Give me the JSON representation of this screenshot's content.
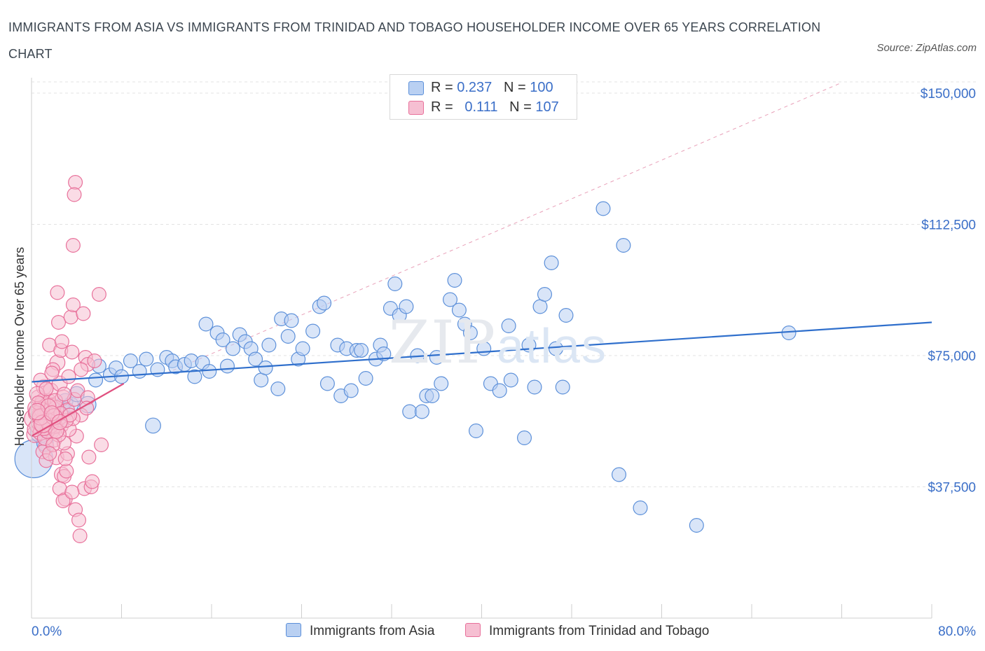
{
  "title": "IMMIGRANTS FROM ASIA VS IMMIGRANTS FROM TRINIDAD AND TOBAGO HOUSEHOLDER INCOME OVER 65 YEARS CORRELATION CHART",
  "source": "Source: ZipAtlas.com",
  "watermark": {
    "zip": "ZIP",
    "atlas": "atlas"
  },
  "colors": {
    "asia": "#5b8fd9",
    "asia_fill": "#b9d0f2",
    "tt": "#e8709a",
    "tt_fill": "#f6bfd2",
    "axis_text": "#3b6fc8"
  },
  "legend": {
    "asia": {
      "r_label": "R = ",
      "r": "0.237",
      "n_label": "N = ",
      "n": "100"
    },
    "tt": {
      "r_label": "R = ",
      "r": "0.111",
      "n_label": "N = ",
      "n": "107"
    }
  },
  "chart_data": {
    "type": "scatter",
    "ylabel": "Householder Income Over 65 years",
    "xlim": [
      0,
      80
    ],
    "ylim": [
      0,
      150000
    ],
    "x_tick_labels": [
      "0.0%",
      "80.0%"
    ],
    "y_ticks": [
      {
        "value": 37500,
        "label": "$37,500"
      },
      {
        "value": 75000,
        "label": "$75,000"
      },
      {
        "value": 112500,
        "label": "$112,500"
      },
      {
        "value": 150000,
        "label": "$150,000"
      }
    ],
    "grid": "dashed horizontal",
    "legend_placement": "top-center",
    "series": [
      {
        "name": "Immigrants from Asia",
        "trend": {
          "x": [
            0,
            80
          ],
          "y": [
            67500,
            84500
          ]
        },
        "points": [
          [
            0.2,
            45500,
            3
          ],
          [
            0.8,
            53000,
            1.6
          ],
          [
            1.0,
            57000,
            1.4
          ],
          [
            1.2,
            50000,
            1.3
          ],
          [
            1.5,
            55000,
            1.3
          ],
          [
            1.8,
            56000,
            1.2
          ],
          [
            2.0,
            58000,
            1.2
          ],
          [
            2.3,
            56500,
            1.2
          ],
          [
            2.7,
            60000,
            1.2
          ],
          [
            3.0,
            62000,
            1.2
          ],
          [
            3.5,
            61000,
            1.2
          ],
          [
            4.0,
            64000,
            1.2
          ],
          [
            5.0,
            61000,
            1.3
          ],
          [
            5.7,
            68000,
            1.1
          ],
          [
            6.0,
            72000,
            1.1
          ],
          [
            7.0,
            69500,
            1.1
          ],
          [
            7.5,
            71500,
            1.1
          ],
          [
            8.0,
            69000,
            1.1
          ],
          [
            8.8,
            73500,
            1.1
          ],
          [
            9.6,
            70500,
            1.1
          ],
          [
            10.2,
            74000,
            1.1
          ],
          [
            10.8,
            55000,
            1.2
          ],
          [
            11.2,
            71000,
            1.1
          ],
          [
            12.0,
            74500,
            1.1
          ],
          [
            12.5,
            73500,
            1.1
          ],
          [
            12.8,
            71800,
            1.1
          ],
          [
            13.6,
            72500,
            1.1
          ],
          [
            14.2,
            73500,
            1.1
          ],
          [
            14.5,
            69000,
            1.1
          ],
          [
            15.2,
            73000,
            1.1
          ],
          [
            15.5,
            84000,
            1.1
          ],
          [
            15.8,
            70500,
            1.1
          ],
          [
            16.5,
            81500,
            1.1
          ],
          [
            17.0,
            79500,
            1.1
          ],
          [
            17.4,
            72000,
            1.1
          ],
          [
            17.9,
            77000,
            1.1
          ],
          [
            18.5,
            81000,
            1.1
          ],
          [
            19.0,
            79000,
            1.1
          ],
          [
            19.5,
            77000,
            1.1
          ],
          [
            19.9,
            74000,
            1.1
          ],
          [
            20.4,
            68000,
            1.1
          ],
          [
            20.8,
            71500,
            1.1
          ],
          [
            21.1,
            78000,
            1.1
          ],
          [
            21.9,
            65500,
            1.1
          ],
          [
            22.2,
            85500,
            1.1
          ],
          [
            22.8,
            80500,
            1.1
          ],
          [
            23.1,
            85000,
            1.1
          ],
          [
            23.7,
            74000,
            1.1
          ],
          [
            24.1,
            77000,
            1.1
          ],
          [
            25.0,
            82000,
            1.1
          ],
          [
            25.6,
            89000,
            1.1
          ],
          [
            26.0,
            90000,
            1.1
          ],
          [
            26.3,
            67000,
            1.1
          ],
          [
            27.2,
            78000,
            1.1
          ],
          [
            27.5,
            63500,
            1.1
          ],
          [
            28.0,
            77000,
            1.1
          ],
          [
            28.4,
            65000,
            1.1
          ],
          [
            28.9,
            76500,
            1.1
          ],
          [
            29.3,
            76500,
            1.1
          ],
          [
            29.7,
            68500,
            1.1
          ],
          [
            30.6,
            74000,
            1.1
          ],
          [
            31.0,
            78000,
            1.1
          ],
          [
            31.3,
            75500,
            1.1
          ],
          [
            31.9,
            88500,
            1.1
          ],
          [
            32.3,
            95500,
            1.1
          ],
          [
            32.7,
            86500,
            1.1
          ],
          [
            33.3,
            89000,
            1.1
          ],
          [
            33.6,
            59000,
            1.1
          ],
          [
            34.3,
            75000,
            1.1
          ],
          [
            34.7,
            59000,
            1.1
          ],
          [
            35.1,
            63500,
            1.1
          ],
          [
            35.6,
            63500,
            1.1
          ],
          [
            36.0,
            74500,
            1.1
          ],
          [
            36.4,
            67000,
            1.1
          ],
          [
            37.2,
            91000,
            1.1
          ],
          [
            37.6,
            96500,
            1.1
          ],
          [
            38.0,
            88000,
            1.1
          ],
          [
            38.5,
            84000,
            1.1
          ],
          [
            39.0,
            81500,
            1.1
          ],
          [
            39.5,
            53500,
            1.1
          ],
          [
            40.2,
            77000,
            1.1
          ],
          [
            40.8,
            67000,
            1.1
          ],
          [
            41.6,
            65000,
            1.1
          ],
          [
            42.4,
            83500,
            1.1
          ],
          [
            42.6,
            68000,
            1.1
          ],
          [
            43.8,
            51500,
            1.1
          ],
          [
            44.2,
            78000,
            1.1
          ],
          [
            44.7,
            66000,
            1.1
          ],
          [
            45.2,
            89000,
            1.1
          ],
          [
            45.6,
            92500,
            1.1
          ],
          [
            46.2,
            101500,
            1.1
          ],
          [
            46.6,
            77000,
            1.1
          ],
          [
            47.2,
            66000,
            1.1
          ],
          [
            47.5,
            86500,
            1.1
          ],
          [
            50.8,
            117000,
            1.1
          ],
          [
            52.2,
            41000,
            1.1
          ],
          [
            52.6,
            106500,
            1.1
          ],
          [
            54.1,
            31500,
            1.1
          ],
          [
            59.1,
            26500,
            1.1
          ],
          [
            67.3,
            81500,
            1.1
          ]
        ]
      },
      {
        "name": "Immigrants from Trinidad and Tobago",
        "trend": {
          "x": [
            0,
            8.2
          ],
          "y": [
            52000,
            67000
          ]
        },
        "points": [
          [
            0.2,
            57000,
            1.5
          ],
          [
            0.3,
            52500,
            1.3
          ],
          [
            0.4,
            60000,
            1.3
          ],
          [
            0.5,
            55000,
            1.2
          ],
          [
            0.6,
            63000,
            1.2
          ],
          [
            0.7,
            58000,
            1.2
          ],
          [
            0.8,
            53000,
            1.2
          ],
          [
            0.9,
            61000,
            1.2
          ],
          [
            1.0,
            56000,
            1.2
          ],
          [
            1.1,
            66000,
            1.2
          ],
          [
            1.2,
            59000,
            1.2
          ],
          [
            1.3,
            49000,
            1.2
          ],
          [
            1.4,
            55500,
            1.2
          ],
          [
            1.5,
            62000,
            1.2
          ],
          [
            1.6,
            57500,
            1.2
          ],
          [
            1.7,
            65000,
            1.2
          ],
          [
            1.8,
            53500,
            1.2
          ],
          [
            1.9,
            60500,
            1.2
          ],
          [
            2.0,
            51000,
            1.2
          ],
          [
            2.1,
            58000,
            1.2
          ],
          [
            2.2,
            46000,
            1.2
          ],
          [
            2.3,
            73000,
            1.2
          ],
          [
            2.4,
            57000,
            1.2
          ],
          [
            2.5,
            67000,
            1.2
          ],
          [
            2.6,
            55000,
            1.2
          ],
          [
            2.7,
            41000,
            1.2
          ],
          [
            2.8,
            63000,
            1.2
          ],
          [
            1.6,
            78000,
            1.1
          ],
          [
            1.9,
            71000,
            1.1
          ],
          [
            2.4,
            84500,
            1.1
          ],
          [
            2.6,
            76500,
            1.1
          ],
          [
            2.9,
            40500,
            1.1
          ],
          [
            3.0,
            34000,
            1.1
          ],
          [
            3.1,
            42000,
            1.1
          ],
          [
            3.2,
            59500,
            1.1
          ],
          [
            3.3,
            69000,
            1.1
          ],
          [
            3.5,
            86000,
            1.1
          ],
          [
            3.6,
            76000,
            1.1
          ],
          [
            3.7,
            89500,
            1.1
          ],
          [
            3.8,
            62500,
            1.1
          ],
          [
            3.9,
            31000,
            1.1
          ],
          [
            4.0,
            52000,
            1.1
          ],
          [
            4.1,
            65000,
            1.1
          ],
          [
            4.2,
            28000,
            1.1
          ],
          [
            4.3,
            23500,
            1.1
          ],
          [
            4.4,
            58000,
            1.1
          ],
          [
            4.6,
            87000,
            1.1
          ],
          [
            4.7,
            37000,
            1.1
          ],
          [
            4.8,
            74500,
            1.1
          ],
          [
            5.0,
            72500,
            1.1
          ],
          [
            2.3,
            93000,
            1.1
          ],
          [
            3.7,
            106500,
            1.1
          ],
          [
            3.9,
            124500,
            1.1
          ],
          [
            3.8,
            121000,
            1.1
          ],
          [
            5.0,
            63000,
            1.1
          ],
          [
            5.1,
            46000,
            1.1
          ],
          [
            5.3,
            37500,
            1.1
          ],
          [
            5.4,
            39000,
            1.1
          ],
          [
            5.6,
            73500,
            1.1
          ],
          [
            6.0,
            92500,
            1.1
          ],
          [
            6.2,
            49500,
            1.1
          ],
          [
            1.0,
            47500,
            1.1
          ],
          [
            1.3,
            45000,
            1.1
          ],
          [
            2.5,
            37000,
            1.1
          ],
          [
            2.8,
            33500,
            1.1
          ],
          [
            3.6,
            36000,
            1.1
          ],
          [
            3.2,
            47000,
            1.1
          ],
          [
            2.0,
            55000,
            1.3
          ],
          [
            1.5,
            59000,
            1.3
          ],
          [
            1.0,
            62000,
            1.2
          ],
          [
            0.5,
            64000,
            1.2
          ],
          [
            2.2,
            60000,
            1.2
          ],
          [
            3.3,
            54000,
            1.2
          ],
          [
            3.7,
            57000,
            1.1
          ],
          [
            2.9,
            50000,
            1.1
          ],
          [
            4.4,
            71000,
            1.1
          ],
          [
            4.9,
            60000,
            1.1
          ],
          [
            0.8,
            68000,
            1.1
          ],
          [
            1.8,
            70000,
            1.1
          ],
          [
            2.7,
            79000,
            1.1
          ],
          [
            3.0,
            45500,
            1.1
          ],
          [
            1.2,
            51500,
            1.2
          ],
          [
            0.7,
            56000,
            1.3
          ],
          [
            1.4,
            53500,
            1.2
          ],
          [
            2.1,
            62000,
            1.2
          ],
          [
            0.9,
            59500,
            1.2
          ],
          [
            1.7,
            55000,
            1.2
          ],
          [
            2.4,
            52500,
            1.2
          ],
          [
            0.4,
            58500,
            1.2
          ],
          [
            1.1,
            54500,
            1.3
          ],
          [
            3.1,
            56500,
            1.1
          ],
          [
            0.6,
            61500,
            1.1
          ],
          [
            1.9,
            49500,
            1.1
          ],
          [
            2.6,
            58500,
            1.1
          ],
          [
            1.3,
            65500,
            1.1
          ],
          [
            0.3,
            54000,
            1.2
          ],
          [
            2.9,
            64000,
            1.1
          ],
          [
            3.4,
            58000,
            1.1
          ],
          [
            1.6,
            47000,
            1.1
          ],
          [
            2.2,
            53500,
            1.2
          ],
          [
            0.8,
            57500,
            1.3
          ],
          [
            1.5,
            60500,
            1.2
          ],
          [
            2.0,
            57500,
            1.3
          ],
          [
            1.0,
            55500,
            1.4
          ],
          [
            0.5,
            59000,
            1.3
          ],
          [
            1.8,
            58500,
            1.2
          ],
          [
            2.5,
            56000,
            1.2
          ]
        ]
      }
    ]
  }
}
